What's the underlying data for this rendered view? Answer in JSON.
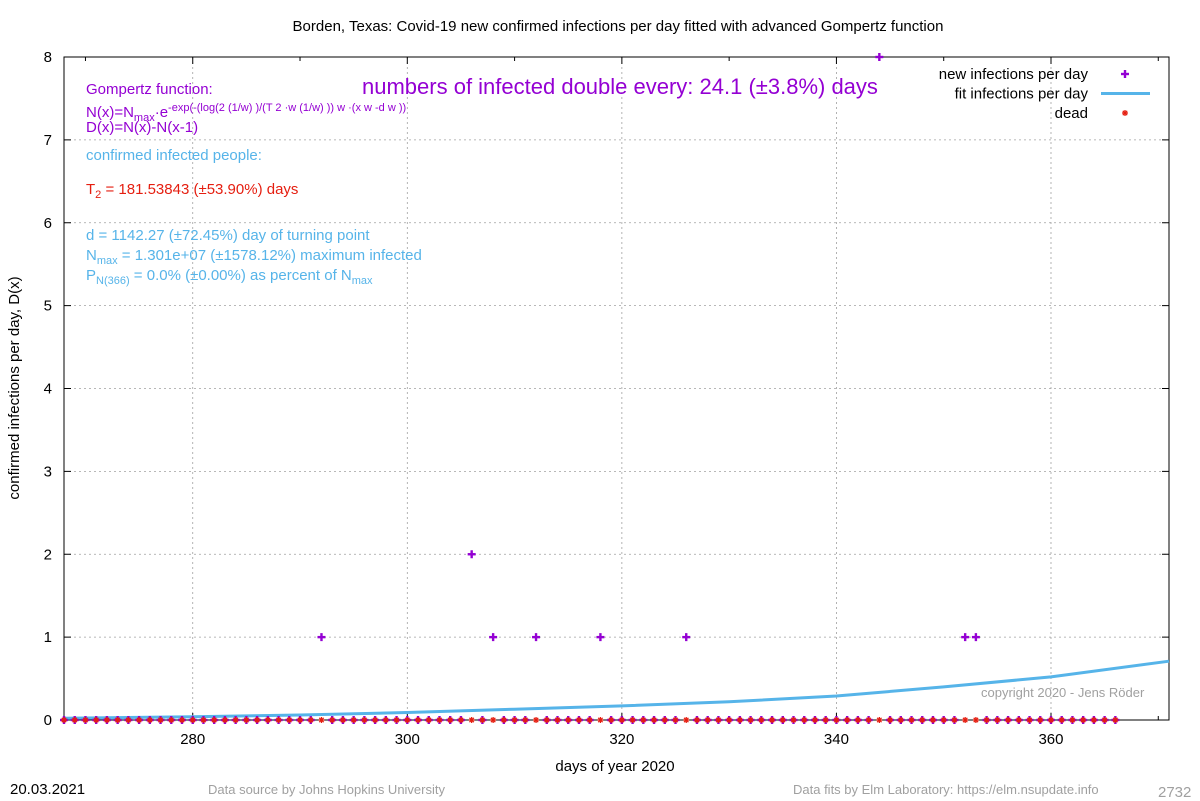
{
  "chart_data": {
    "type": "scatter",
    "title": "Borden,  Texas: Covid-19 new confirmed infections per day fitted with advanced Gompertz function",
    "xlabel": "days of year 2020",
    "ylabel": "confirmed infections per day, D(x)",
    "xlim": [
      268,
      371
    ],
    "ylim": [
      0,
      8
    ],
    "x_ticks": [
      280,
      300,
      320,
      340,
      360
    ],
    "y_ticks": [
      0,
      1,
      2,
      3,
      4,
      5,
      6,
      7,
      8
    ],
    "grid": true,
    "legend_position": "top-right",
    "legend": [
      {
        "label": "new infections per day",
        "color": "#9400d3",
        "marker": "plus"
      },
      {
        "label": "fit infections per day",
        "color": "#56b4e9",
        "marker": "line"
      },
      {
        "label": "dead",
        "color": "#e51e10",
        "marker": "star"
      }
    ],
    "series": [
      {
        "name": "new infections per day",
        "color": "#9400d3",
        "points": [
          [
            292,
            1
          ],
          [
            306,
            2
          ],
          [
            308,
            1
          ],
          [
            312,
            1
          ],
          [
            318,
            1
          ],
          [
            326,
            1
          ],
          [
            344,
            8
          ],
          [
            352,
            1
          ],
          [
            353,
            1
          ]
        ],
        "zero_x_start": 268,
        "zero_x_end": 366
      },
      {
        "name": "fit infections per day",
        "color": "#56b4e9",
        "points": [
          [
            268,
            0.02
          ],
          [
            280,
            0.04
          ],
          [
            290,
            0.06
          ],
          [
            300,
            0.09
          ],
          [
            310,
            0.13
          ],
          [
            320,
            0.17
          ],
          [
            330,
            0.22
          ],
          [
            340,
            0.29
          ],
          [
            350,
            0.4
          ],
          [
            360,
            0.52
          ],
          [
            371,
            0.71
          ]
        ]
      },
      {
        "name": "dead",
        "color": "#e51e10",
        "zero_x_start": 268,
        "zero_x_end": 366
      }
    ]
  },
  "annotations": {
    "doubling": "numbers of infected double every: 24.1 (±3.8%) days",
    "gompertz_title": "Gompertz function:",
    "formula1_a": "N(x)=N",
    "formula1_sub": "max",
    "formula1_b": "·e",
    "formula1_sup": "-exp(-(log(2 (1/w) )/(T 2 ·w (1/w) )) w ·(x w -d w ))",
    "formula2": "D(x)=N(x)-N(x-1)",
    "confirmed": "confirmed infected people:",
    "t2_a": "T",
    "t2_sub": "2",
    "t2_b": " = 181.53843 (±53.90%) days",
    "d_line": "d = 1142.27 (±72.45%) day of turning point",
    "nmax_a": "N",
    "nmax_sub": "max",
    "nmax_b": " = 1.301e+07 (±1578.12%) maximum infected",
    "p_a": "P",
    "p_sub": "N(366)",
    "p_b": " = 0.0% (±0.00%) as percent of N",
    "p_sub2": "max",
    "copyright": "copyright 2020 - Jens Röder"
  },
  "footer": {
    "date": "20.03.2021",
    "source": "Data source by Johns Hopkins University",
    "fits": "Data fits by Elm Laboratory: https://elm.nsupdate.info",
    "id": "2732"
  }
}
